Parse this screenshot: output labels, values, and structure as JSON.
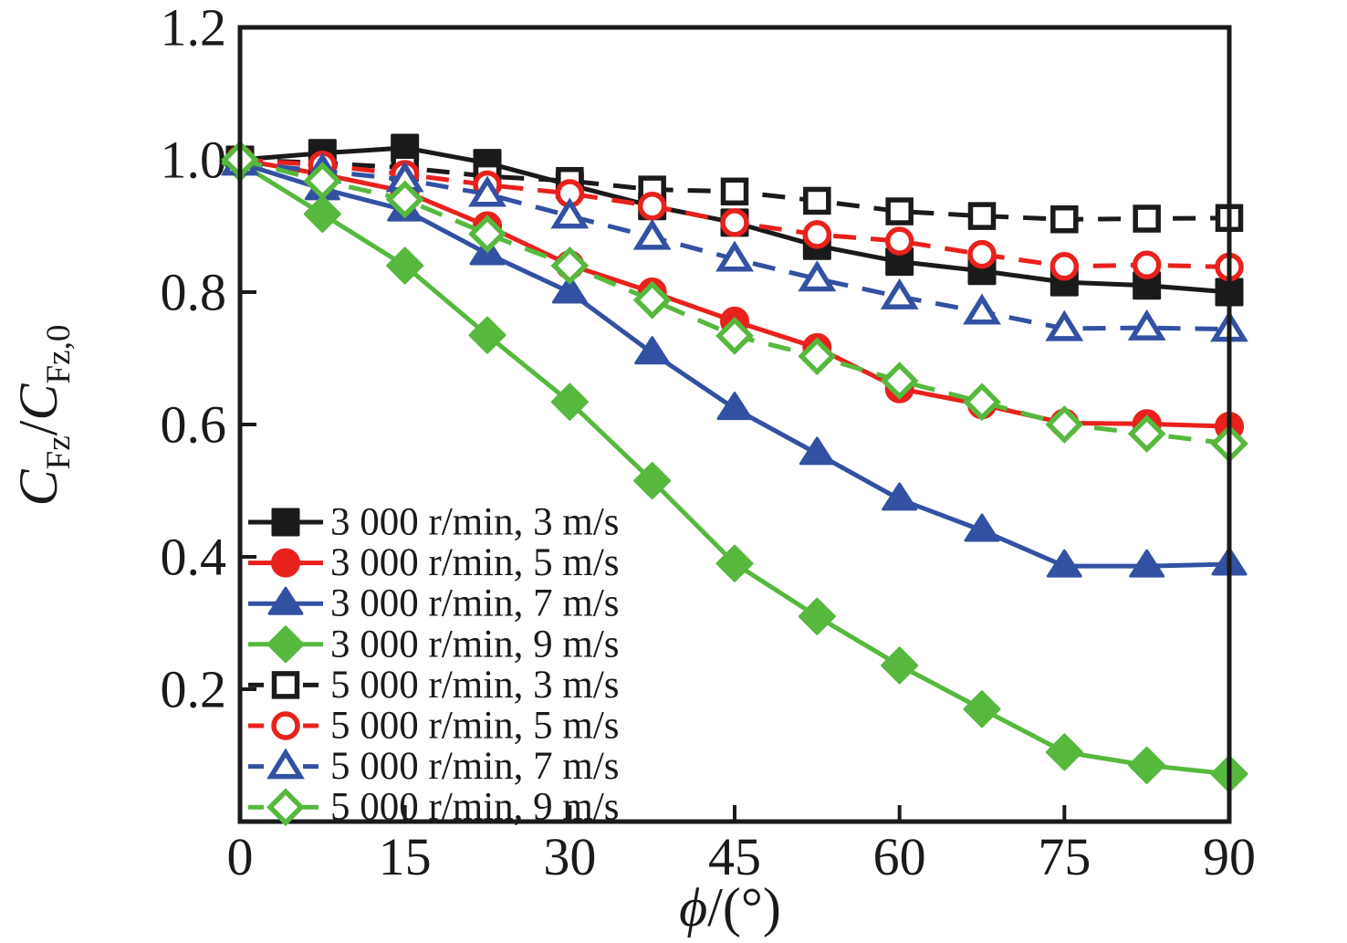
{
  "chart_data": {
    "type": "line",
    "title": "",
    "xlabel_rich": [
      {
        "t": "ϕ",
        "style": "italic"
      },
      {
        "t": "/(°)",
        "style": "normal"
      }
    ],
    "ylabel_rich": [
      {
        "t": "C",
        "style": "italic"
      },
      {
        "t": "Fz",
        "sub": true
      },
      {
        "t": "/",
        "style": "normal"
      },
      {
        "t": "C",
        "style": "italic"
      },
      {
        "t": "Fz,0",
        "sub": true
      }
    ],
    "xlim": [
      0,
      90
    ],
    "ylim": [
      0,
      1.2
    ],
    "x_ticks": [
      0,
      15,
      30,
      45,
      60,
      75,
      90
    ],
    "x_tick_labels": [
      "0",
      "15",
      "30",
      "45",
      "60",
      "75",
      "90"
    ],
    "y_ticks": [
      0.2,
      0.4,
      0.6,
      0.8,
      1.0,
      1.2
    ],
    "y_tick_labels": [
      "0.2",
      "0.4",
      "0.6",
      "0.8",
      "1.0",
      "1.2"
    ],
    "grid": false,
    "legend_position": "inside-lower-left",
    "x": [
      0,
      7.5,
      15,
      22.5,
      30,
      37.5,
      45,
      52.5,
      60,
      67.5,
      75,
      82.5,
      90
    ],
    "series": [
      {
        "name": "3 000 r/min, 3 m/s",
        "color": "#1a1a1a",
        "line": "solid",
        "marker": "square",
        "fill": "filled",
        "values": [
          1.0,
          1.01,
          1.018,
          0.995,
          0.962,
          0.93,
          0.905,
          0.87,
          0.846,
          0.832,
          0.815,
          0.81,
          0.8
        ]
      },
      {
        "name": "3 000 r/min, 5 m/s",
        "color": "#e8211d",
        "line": "solid",
        "marker": "circle",
        "fill": "filled",
        "values": [
          1.0,
          0.978,
          0.952,
          0.9,
          0.841,
          0.8,
          0.756,
          0.716,
          0.654,
          0.63,
          0.602,
          0.601,
          0.597
        ]
      },
      {
        "name": "3 000 r/min, 7 m/s",
        "color": "#3351a3",
        "line": "solid",
        "marker": "triangle",
        "fill": "filled",
        "values": [
          0.995,
          0.956,
          0.924,
          0.858,
          0.8,
          0.708,
          0.624,
          0.556,
          0.487,
          0.44,
          0.386,
          0.386,
          0.389
        ]
      },
      {
        "name": "3 000 r/min, 9 m/s",
        "color": "#56b93e",
        "line": "solid",
        "marker": "diamond",
        "fill": "filled",
        "values": [
          0.995,
          0.918,
          0.84,
          0.735,
          0.634,
          0.515,
          0.39,
          0.31,
          0.236,
          0.17,
          0.105,
          0.085,
          0.072
        ]
      },
      {
        "name": "5 000 r/min, 3 m/s",
        "color": "#1a1a1a",
        "line": "dashed",
        "marker": "square",
        "fill": "open",
        "values": [
          1.0,
          0.995,
          0.988,
          0.975,
          0.968,
          0.955,
          0.952,
          0.938,
          0.922,
          0.915,
          0.91,
          0.911,
          0.912
        ]
      },
      {
        "name": "5 000 r/min, 5 m/s",
        "color": "#e8211d",
        "line": "dashed",
        "marker": "circle",
        "fill": "open",
        "values": [
          1.0,
          0.992,
          0.978,
          0.962,
          0.949,
          0.93,
          0.905,
          0.887,
          0.877,
          0.857,
          0.839,
          0.841,
          0.838
        ]
      },
      {
        "name": "5 000 r/min, 7 m/s",
        "color": "#3351a3",
        "line": "dashed",
        "marker": "triangle",
        "fill": "open",
        "values": [
          0.995,
          0.983,
          0.97,
          0.948,
          0.915,
          0.883,
          0.85,
          0.82,
          0.793,
          0.77,
          0.745,
          0.746,
          0.744
        ]
      },
      {
        "name": "5 000 r/min, 9 m/s",
        "color": "#56b93e",
        "line": "dashed",
        "marker": "diamond",
        "fill": "open",
        "values": [
          1.0,
          0.968,
          0.94,
          0.888,
          0.84,
          0.788,
          0.734,
          0.703,
          0.666,
          0.634,
          0.6,
          0.586,
          0.571
        ]
      }
    ],
    "colors": {
      "axis": "#1a1a1a",
      "background": "#ffffff"
    }
  }
}
